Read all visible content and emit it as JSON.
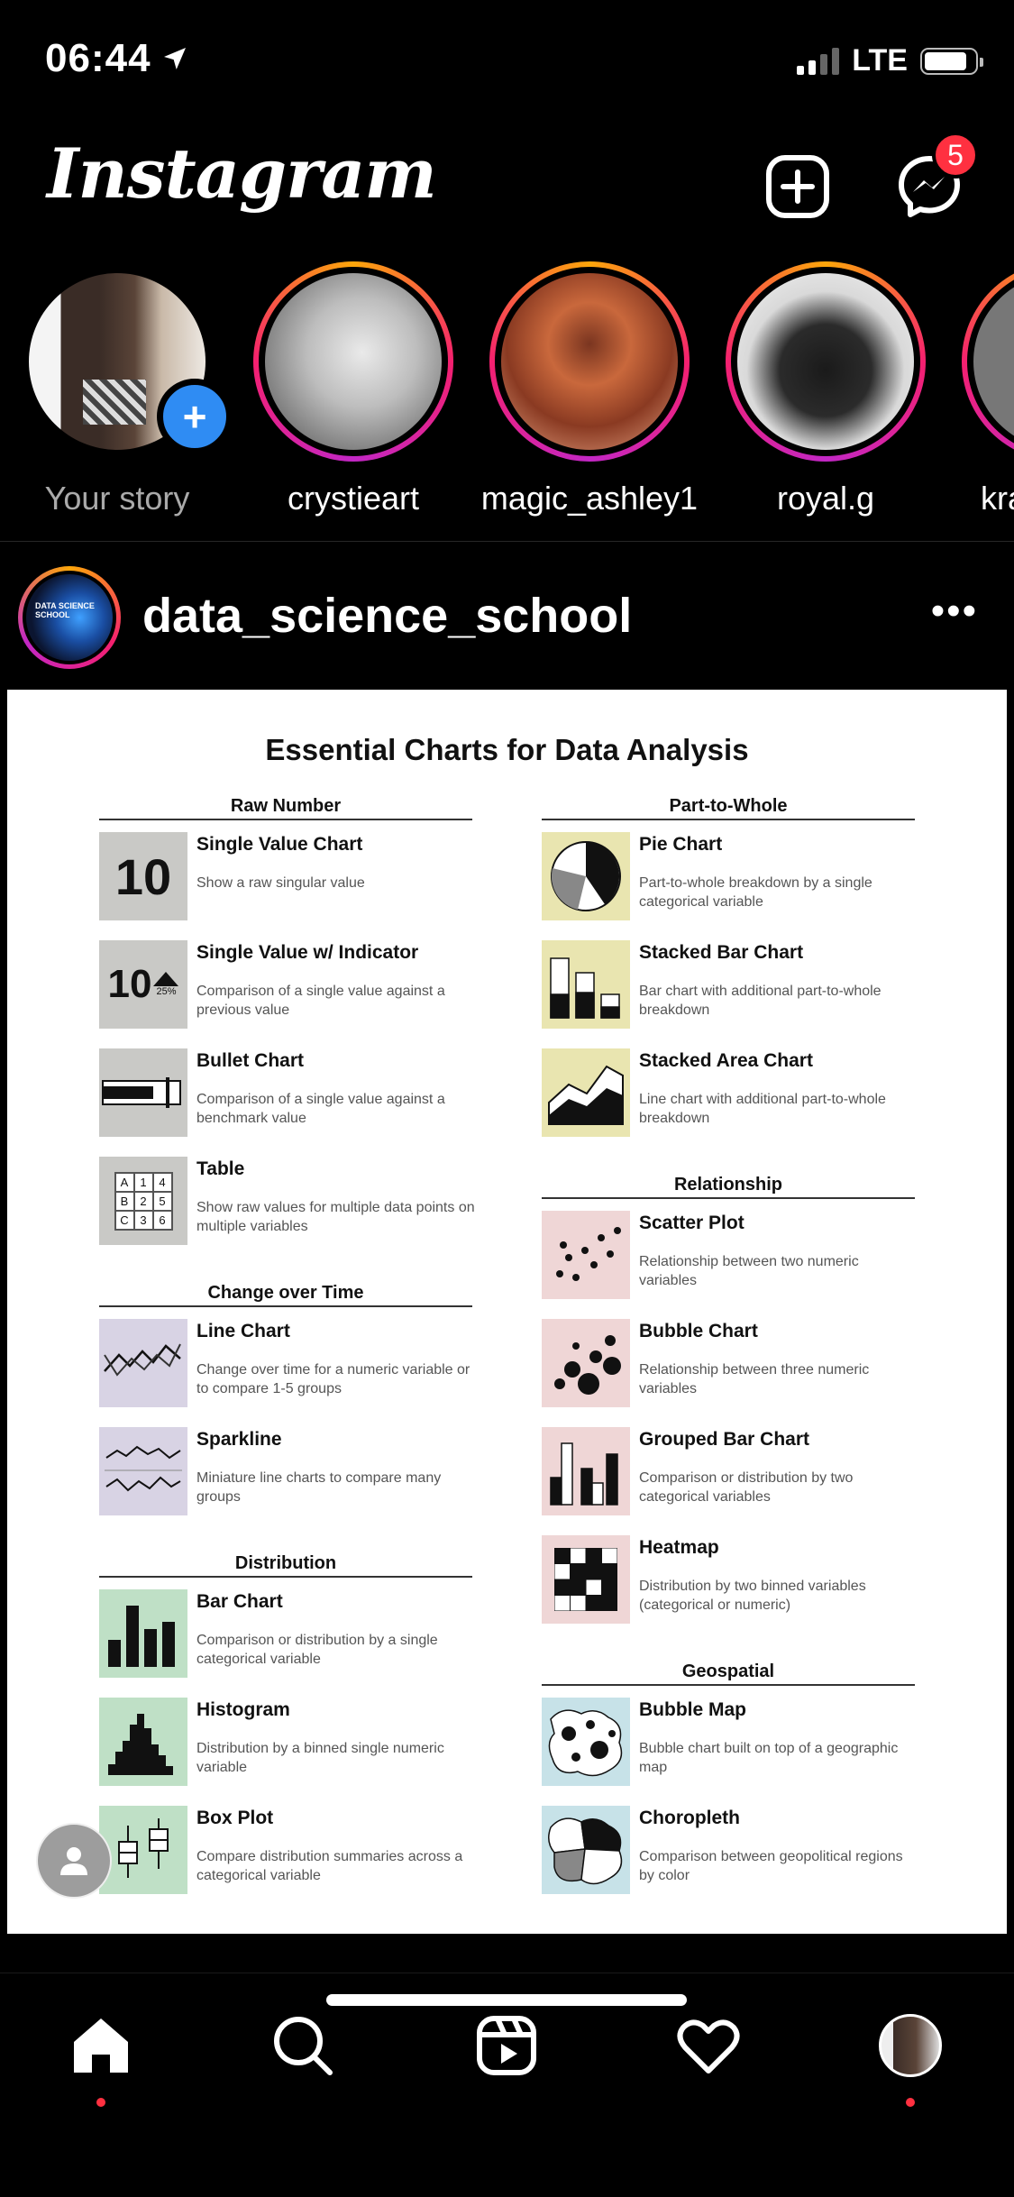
{
  "status_bar": {
    "time": "06:44",
    "network": "LTE"
  },
  "header": {
    "logo": "Instagram",
    "notification_count": "5"
  },
  "stories": [
    {
      "name": "Your story",
      "own": true
    },
    {
      "name": "crystieart"
    },
    {
      "name": "magic_ashley1"
    },
    {
      "name": "royal.g"
    },
    {
      "name": "kra"
    }
  ],
  "post": {
    "username": "data_science_school",
    "avatar_text": "DATA SCIENCE SCHOOL",
    "infographic": {
      "title": "Essential Charts for Data Analysis",
      "sections": {
        "raw_number": {
          "heading": "Raw Number",
          "items": [
            {
              "title": "Single Value Chart",
              "desc": "Show a raw singular value"
            },
            {
              "title": "Single Value w/ Indicator",
              "desc": "Comparison of a single value against a previous value"
            },
            {
              "title": "Bullet Chart",
              "desc": "Comparison of a single value against a benchmark value"
            },
            {
              "title": "Table",
              "desc": "Show raw values for multiple data points on multiple variables"
            }
          ],
          "thumb_value": "10",
          "thumb_percent": "25%",
          "table_cells": [
            "A",
            "1",
            "4",
            "B",
            "2",
            "5",
            "C",
            "3",
            "6"
          ]
        },
        "change_over_time": {
          "heading": "Change over Time",
          "items": [
            {
              "title": "Line Chart",
              "desc": "Change over time for a numeric variable or to compare 1-5 groups"
            },
            {
              "title": "Sparkline",
              "desc": "Miniature line charts to compare many groups"
            }
          ]
        },
        "distribution": {
          "heading": "Distribution",
          "items": [
            {
              "title": "Bar Chart",
              "desc": "Comparison or distribution by a single categorical variable"
            },
            {
              "title": "Histogram",
              "desc": "Distribution by a binned single numeric variable"
            },
            {
              "title": "Box Plot",
              "desc": "Compare distribution summaries across a categorical variable"
            }
          ]
        },
        "part_to_whole": {
          "heading": "Part-to-Whole",
          "items": [
            {
              "title": "Pie Chart",
              "desc": "Part-to-whole breakdown by a single categorical variable"
            },
            {
              "title": "Stacked Bar Chart",
              "desc": "Bar chart with additional part-to-whole breakdown"
            },
            {
              "title": "Stacked Area Chart",
              "desc": "Line chart with additional part-to-whole breakdown"
            }
          ]
        },
        "relationship": {
          "heading": "Relationship",
          "items": [
            {
              "title": "Scatter Plot",
              "desc": "Relationship between two numeric variables"
            },
            {
              "title": "Bubble Chart",
              "desc": "Relationship between three numeric variables"
            },
            {
              "title": "Grouped Bar Chart",
              "desc": "Comparison or distribution by two categorical variables"
            },
            {
              "title": "Heatmap",
              "desc": "Distribution by two binned variables (categorical or numeric)"
            }
          ]
        },
        "geospatial": {
          "heading": "Geospatial",
          "items": [
            {
              "title": "Bubble Map",
              "desc": "Bubble chart built on top of a geographic map"
            },
            {
              "title": "Choropleth",
              "desc": "Comparison between geopolitical regions by color"
            }
          ]
        }
      }
    }
  },
  "tab_bar": {
    "items": [
      "home-icon",
      "search-icon",
      "reels-icon",
      "heart-icon",
      "profile-avatar"
    ]
  },
  "colors": {
    "story_gradient": [
      "#fca60a",
      "#f5206f",
      "#c227c5"
    ],
    "badge": "#ff3040",
    "add_story": "#2f8cf3"
  }
}
